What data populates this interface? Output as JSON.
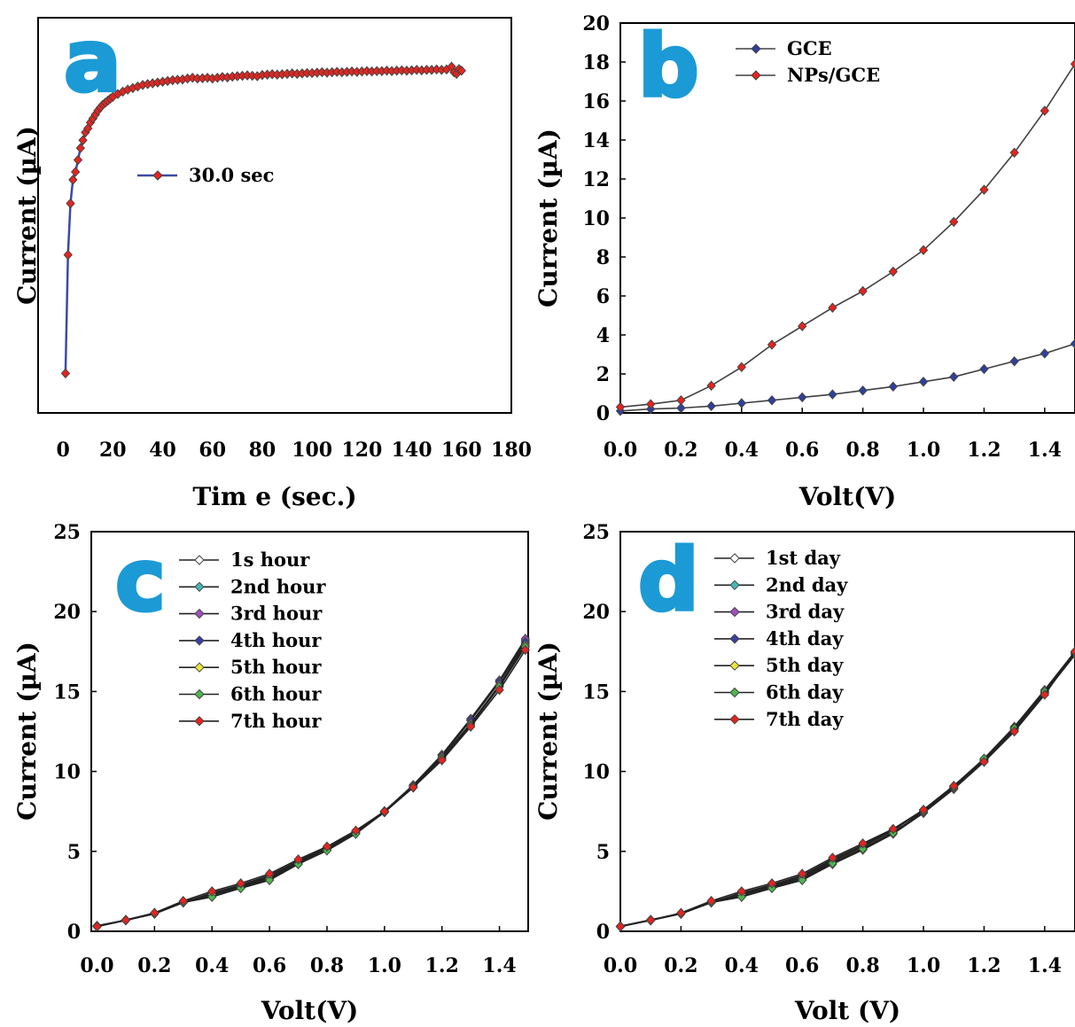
{
  "chart_data": [
    {
      "panel": "a",
      "type": "line",
      "xlabel": "Tim e (sec.)",
      "ylabel": "Current (µA)",
      "xlim": [
        -10,
        180
      ],
      "ylim": [
        0,
        1
      ],
      "xticks": [
        0,
        20,
        40,
        60,
        80,
        100,
        120,
        140,
        160,
        180
      ],
      "yticks": [],
      "legend_position": "center",
      "series": [
        {
          "name": "30.0 sec",
          "line_color": "#3b4aa3",
          "marker_color": "#e8231e",
          "x": [
            1,
            2,
            3,
            4,
            5,
            6,
            7,
            8,
            9,
            10,
            11,
            12,
            13,
            14,
            15,
            16,
            17,
            18,
            19,
            20,
            22,
            24,
            26,
            28,
            30,
            32,
            34,
            36,
            38,
            40,
            42,
            44,
            46,
            48,
            50,
            52,
            54,
            56,
            58,
            60,
            62,
            64,
            66,
            68,
            70,
            72,
            74,
            76,
            78,
            80,
            82,
            84,
            86,
            88,
            90,
            92,
            94,
            96,
            98,
            100,
            102,
            104,
            106,
            108,
            110,
            112,
            114,
            116,
            118,
            120,
            122,
            124,
            126,
            128,
            130,
            132,
            134,
            136,
            138,
            140,
            142,
            144,
            146,
            148,
            150,
            152,
            154,
            156,
            157,
            158,
            159,
            160
          ],
          "y": [
            0.1,
            0.4,
            0.53,
            0.59,
            0.61,
            0.64,
            0.67,
            0.69,
            0.71,
            0.72,
            0.735,
            0.745,
            0.755,
            0.765,
            0.773,
            0.78,
            0.785,
            0.79,
            0.795,
            0.8,
            0.807,
            0.813,
            0.818,
            0.822,
            0.826,
            0.83,
            0.832,
            0.834,
            0.836,
            0.838,
            0.84,
            0.842,
            0.843,
            0.844,
            0.846,
            0.848,
            0.846,
            0.847,
            0.848,
            0.846,
            0.848,
            0.85,
            0.849,
            0.851,
            0.852,
            0.853,
            0.854,
            0.853,
            0.852,
            0.855,
            0.856,
            0.857,
            0.856,
            0.857,
            0.858,
            0.859,
            0.858,
            0.859,
            0.86,
            0.86,
            0.861,
            0.862,
            0.861,
            0.862,
            0.863,
            0.862,
            0.863,
            0.864,
            0.863,
            0.864,
            0.865,
            0.864,
            0.865,
            0.865,
            0.866,
            0.865,
            0.866,
            0.867,
            0.866,
            0.867,
            0.868,
            0.867,
            0.868,
            0.868,
            0.869,
            0.868,
            0.869,
            0.876,
            0.862,
            0.858,
            0.87,
            0.866
          ]
        }
      ]
    },
    {
      "panel": "b",
      "type": "line",
      "xlabel": "Volt(V)",
      "ylabel": "Current (µA)",
      "xlim": [
        0,
        1.5
      ],
      "ylim": [
        0,
        20
      ],
      "xticks": [
        0.0,
        0.2,
        0.4,
        0.6,
        0.8,
        1.0,
        1.2,
        1.4
      ],
      "yticks": [
        0,
        2,
        4,
        6,
        8,
        10,
        12,
        14,
        16,
        18,
        20
      ],
      "legend_position": "top-center",
      "series": [
        {
          "name": "GCE",
          "line_color": "#404040",
          "marker_color": "#2f3f9f",
          "x": [
            0.0,
            0.1,
            0.2,
            0.3,
            0.4,
            0.5,
            0.6,
            0.7,
            0.8,
            0.9,
            1.0,
            1.1,
            1.2,
            1.3,
            1.4,
            1.5
          ],
          "y": [
            0.1,
            0.2,
            0.25,
            0.35,
            0.5,
            0.65,
            0.8,
            0.95,
            1.15,
            1.35,
            1.6,
            1.85,
            2.25,
            2.65,
            3.05,
            3.55
          ]
        },
        {
          "name": "NPs/GCE",
          "line_color": "#404040",
          "marker_color": "#e8231e",
          "x": [
            0.0,
            0.1,
            0.2,
            0.3,
            0.4,
            0.5,
            0.6,
            0.7,
            0.8,
            0.9,
            1.0,
            1.1,
            1.2,
            1.3,
            1.4,
            1.5
          ],
          "y": [
            0.3,
            0.45,
            0.65,
            1.4,
            2.35,
            3.5,
            4.45,
            5.4,
            6.25,
            7.25,
            8.35,
            9.8,
            11.45,
            13.35,
            15.5,
            17.9
          ]
        }
      ]
    },
    {
      "panel": "c",
      "type": "line",
      "xlabel": "Volt(V)",
      "ylabel": "Current (µA)",
      "xlim": [
        -0.02,
        1.5
      ],
      "ylim": [
        0,
        25
      ],
      "xticks": [
        0.0,
        0.2,
        0.4,
        0.6,
        0.8,
        1.0,
        1.2,
        1.4
      ],
      "yticks": [
        0,
        5,
        10,
        15,
        20,
        25
      ],
      "legend_position": "top-center",
      "x": [
        0.0,
        0.1,
        0.2,
        0.3,
        0.4,
        0.5,
        0.6,
        0.7,
        0.8,
        0.9,
        1.0,
        1.1,
        1.2,
        1.3,
        1.4,
        1.49
      ],
      "series": [
        {
          "name": "1s hour",
          "line_color": "#222222",
          "marker_color": "#ffffff",
          "y": [
            0.3,
            0.7,
            1.1,
            1.8,
            2.2,
            2.7,
            3.2,
            4.2,
            5.1,
            6.1,
            7.5,
            9.0,
            10.8,
            13.0,
            15.4,
            18.0
          ]
        },
        {
          "name": "2nd hour",
          "line_color": "#222222",
          "marker_color": "#41b9b9",
          "y": [
            0.35,
            0.7,
            1.15,
            1.85,
            2.3,
            2.8,
            3.35,
            4.3,
            5.2,
            6.2,
            7.5,
            9.1,
            11.0,
            13.2,
            15.6,
            18.2
          ]
        },
        {
          "name": "3rd hour",
          "line_color": "#222222",
          "marker_color": "#a14fc1",
          "y": [
            0.3,
            0.72,
            1.12,
            1.82,
            2.35,
            2.85,
            3.4,
            4.35,
            5.2,
            6.2,
            7.52,
            9.15,
            11.05,
            13.3,
            15.7,
            18.3
          ]
        },
        {
          "name": "4th hour",
          "line_color": "#222222",
          "marker_color": "#3a3fa4",
          "y": [
            0.3,
            0.7,
            1.1,
            1.8,
            2.4,
            2.9,
            3.5,
            4.4,
            5.25,
            6.25,
            7.5,
            9.1,
            11.0,
            13.2,
            15.6,
            18.1
          ]
        },
        {
          "name": "5th hour",
          "line_color": "#222222",
          "marker_color": "#e8e83a",
          "y": [
            0.32,
            0.7,
            1.12,
            1.8,
            2.3,
            2.75,
            3.3,
            4.25,
            5.1,
            6.15,
            7.45,
            9.0,
            10.9,
            13.0,
            15.4,
            17.9
          ]
        },
        {
          "name": "6th hour",
          "line_color": "#222222",
          "marker_color": "#4cb84c",
          "y": [
            0.3,
            0.68,
            1.1,
            1.8,
            2.15,
            2.7,
            3.2,
            4.2,
            5.05,
            6.1,
            7.45,
            9.0,
            10.8,
            12.9,
            15.3,
            17.8
          ]
        },
        {
          "name": "7th hour",
          "line_color": "#222222",
          "marker_color": "#e8231e",
          "y": [
            0.3,
            0.7,
            1.15,
            1.9,
            2.5,
            3.0,
            3.6,
            4.5,
            5.3,
            6.3,
            7.5,
            9.0,
            10.7,
            12.8,
            15.1,
            17.6
          ]
        }
      ]
    },
    {
      "panel": "d",
      "type": "line",
      "xlabel": "Volt (V)",
      "ylabel": "Current (µA)",
      "xlim": [
        0,
        1.5
      ],
      "ylim": [
        0,
        25
      ],
      "xticks": [
        0.0,
        0.2,
        0.4,
        0.6,
        0.8,
        1.0,
        1.2,
        1.4
      ],
      "yticks": [
        0,
        5,
        10,
        15,
        20,
        25
      ],
      "legend_position": "top-center",
      "x": [
        0.0,
        0.1,
        0.2,
        0.3,
        0.4,
        0.5,
        0.6,
        0.7,
        0.8,
        0.9,
        1.0,
        1.1,
        1.2,
        1.3,
        1.4,
        1.5
      ],
      "series": [
        {
          "name": "1st day",
          "line_color": "#222222",
          "marker_color": "#ffffff",
          "y": [
            0.3,
            0.7,
            1.1,
            1.8,
            2.2,
            2.7,
            3.2,
            4.2,
            5.1,
            6.1,
            7.4,
            8.9,
            10.6,
            12.6,
            14.9,
            17.3
          ]
        },
        {
          "name": "2nd day",
          "line_color": "#222222",
          "marker_color": "#41b9b9",
          "y": [
            0.32,
            0.72,
            1.12,
            1.85,
            2.3,
            2.8,
            3.35,
            4.4,
            5.3,
            6.3,
            7.6,
            9.1,
            10.8,
            12.8,
            15.1,
            17.5
          ]
        },
        {
          "name": "3rd day",
          "line_color": "#222222",
          "marker_color": "#a14fc1",
          "y": [
            0.3,
            0.7,
            1.1,
            1.82,
            2.35,
            2.85,
            3.4,
            4.45,
            5.35,
            6.35,
            7.55,
            9.05,
            10.75,
            12.75,
            15.0,
            17.45
          ]
        },
        {
          "name": "4th day",
          "line_color": "#222222",
          "marker_color": "#3a3fa4",
          "y": [
            0.3,
            0.7,
            1.1,
            1.8,
            2.4,
            2.9,
            3.5,
            4.5,
            5.4,
            6.4,
            7.5,
            9.0,
            10.7,
            12.7,
            15.0,
            17.4
          ]
        },
        {
          "name": "5th day",
          "line_color": "#222222",
          "marker_color": "#e8e83a",
          "y": [
            0.3,
            0.7,
            1.12,
            1.8,
            2.3,
            2.75,
            3.3,
            4.3,
            5.2,
            6.2,
            7.45,
            8.95,
            10.65,
            12.65,
            14.95,
            17.35
          ]
        },
        {
          "name": "6th day",
          "line_color": "#222222",
          "marker_color": "#4cb84c",
          "y": [
            0.3,
            0.68,
            1.1,
            1.8,
            2.15,
            2.7,
            3.2,
            4.25,
            5.15,
            6.15,
            7.5,
            9.0,
            10.8,
            12.7,
            15.0,
            17.4
          ]
        },
        {
          "name": "7th day",
          "line_color": "#222222",
          "marker_color": "#e8231e",
          "y": [
            0.3,
            0.7,
            1.15,
            1.9,
            2.5,
            3.0,
            3.6,
            4.6,
            5.5,
            6.4,
            7.6,
            9.1,
            10.6,
            12.5,
            14.8,
            17.5
          ]
        }
      ]
    }
  ],
  "panel_labels": [
    "a",
    "b",
    "c",
    "d"
  ]
}
